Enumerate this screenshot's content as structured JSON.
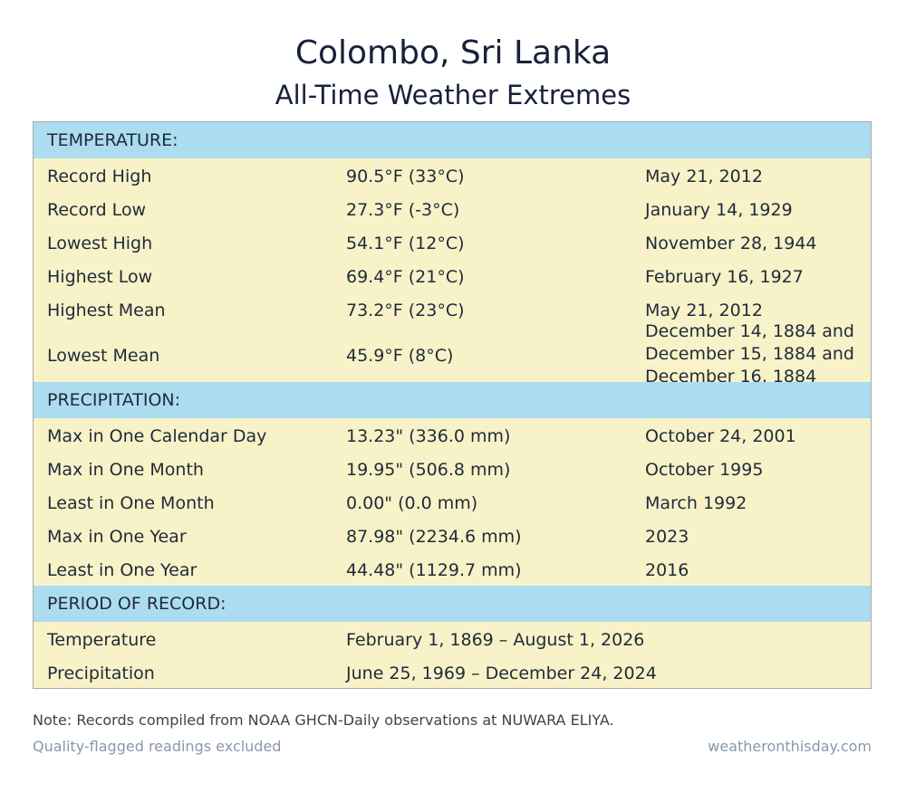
{
  "header": {
    "title": "Colombo, Sri Lanka",
    "subtitle": "All-Time Weather Extremes"
  },
  "temperature": {
    "heading": "TEMPERATURE:",
    "rows": [
      {
        "label": "Record High",
        "value": "90.5°F (33°C)",
        "date": "May 21, 2012"
      },
      {
        "label": "Record Low",
        "value": "27.3°F (-3°C)",
        "date": "January 14, 1929"
      },
      {
        "label": "Lowest High",
        "value": "54.1°F (12°C)",
        "date": "November 28, 1944"
      },
      {
        "label": "Highest Low",
        "value": "69.4°F (21°C)",
        "date": "February 16, 1927"
      },
      {
        "label": "Highest Mean",
        "value": "73.2°F (23°C)",
        "date": "May 21, 2012"
      },
      {
        "label": "Lowest Mean",
        "value": "45.9°F (8°C)",
        "dates": [
          "December 14, 1884 and",
          "December 15, 1884 and",
          "December 16, 1884"
        ]
      }
    ]
  },
  "precipitation": {
    "heading": "PRECIPITATION:",
    "rows": [
      {
        "label": "Max in One Calendar Day",
        "value": "13.23\" (336.0 mm)",
        "date": "October 24, 2001"
      },
      {
        "label": "Max in One Month",
        "value": "19.95\" (506.8 mm)",
        "date": "October 1995"
      },
      {
        "label": "Least in One Month",
        "value": "0.00\" (0.0 mm)",
        "date": "March 1992"
      },
      {
        "label": "Max in One Year",
        "value": "87.98\" (2234.6 mm)",
        "date": "2023"
      },
      {
        "label": "Least in One Year",
        "value": "44.48\" (1129.7 mm)",
        "date": "2016"
      }
    ]
  },
  "period": {
    "heading": "PERIOD OF RECORD:",
    "rows": [
      {
        "label": "Temperature",
        "value": "February 1, 1869 – August 1, 2026"
      },
      {
        "label": "Precipitation",
        "value": "June 25, 1969 – December 24, 2024"
      }
    ]
  },
  "footer": {
    "note": "Note: Records compiled from NOAA GHCN-Daily observations at NUWARA ELIYA.",
    "qualifier": "Quality-flagged readings excluded",
    "source": "weatheronthisday.com"
  }
}
